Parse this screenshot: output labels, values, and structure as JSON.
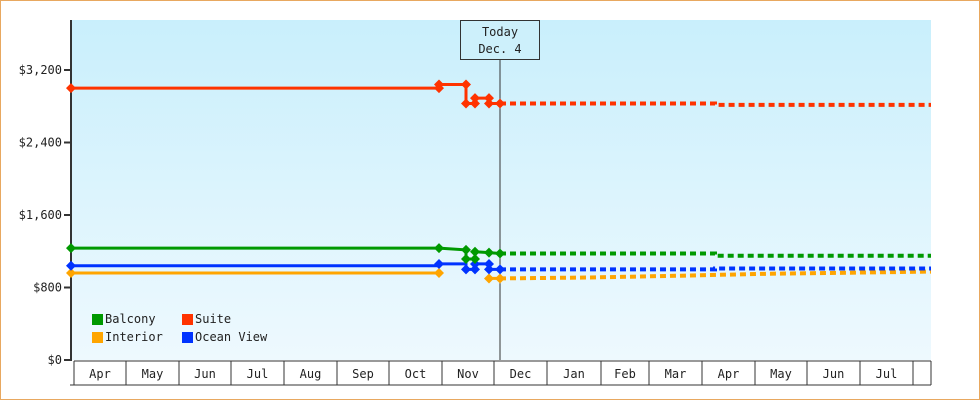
{
  "chart_data": {
    "type": "line",
    "title": "",
    "xlabel": "",
    "ylabel": "",
    "ylim": [
      0,
      3800
    ],
    "y_ticks": [
      "$0",
      "$800",
      "$1,600",
      "$2,400",
      "$3,200"
    ],
    "y_tick_values": [
      0,
      800,
      1600,
      2400,
      3200
    ],
    "x_ticks": [
      "Apr",
      "May",
      "Jun",
      "Jul",
      "Aug",
      "Sep",
      "Oct",
      "Nov",
      "Dec",
      "Jan",
      "Feb",
      "Mar",
      "Apr",
      "May",
      "Jun",
      "Jul"
    ],
    "today_marker": {
      "line1": "Today",
      "line2": "Dec. 4"
    },
    "legend_position": "bottom-left inside plot",
    "grid": false,
    "series": [
      {
        "name": "Suite",
        "color": "#ff3300",
        "history": [
          [
            "Apr",
            3000
          ],
          [
            "Oct (late)",
            3000
          ],
          [
            "Oct (late)",
            3040
          ],
          [
            "Nov (mid)",
            3040
          ],
          [
            "Nov (mid)",
            2830
          ],
          [
            "Nov (late)",
            2830
          ],
          [
            "Nov (late)",
            2890
          ],
          [
            "Dec (early)",
            2890
          ],
          [
            "Dec (early)",
            2830
          ],
          [
            "Dec 4",
            2830
          ]
        ],
        "forecast": [
          [
            "Dec 4",
            2830
          ],
          [
            "Apr",
            2830
          ],
          [
            "Jul",
            2815
          ]
        ]
      },
      {
        "name": "Balcony",
        "color": "#009900",
        "history": [
          [
            "Apr",
            1235
          ],
          [
            "Oct (late)",
            1235
          ],
          [
            "Nov (mid)",
            1215
          ],
          [
            "Nov (mid)",
            1115
          ],
          [
            "Nov (late)",
            1195
          ],
          [
            "Dec (early)",
            1185
          ],
          [
            "Dec 4",
            1175
          ]
        ],
        "forecast": [
          [
            "Dec 4",
            1175
          ],
          [
            "Apr",
            1175
          ],
          [
            "Jul",
            1150
          ]
        ]
      },
      {
        "name": "Ocean View",
        "color": "#0033ff",
        "history": [
          [
            "Apr",
            1040
          ],
          [
            "Oct (late)",
            1040
          ],
          [
            "Oct (late)",
            1060
          ],
          [
            "Nov (mid)",
            1060
          ],
          [
            "Nov (mid)",
            1000
          ],
          [
            "Nov (late)",
            1000
          ],
          [
            "Nov (late)",
            1060
          ],
          [
            "Dec (early)",
            1060
          ],
          [
            "Dec (early)",
            1000
          ],
          [
            "Dec 4",
            1000
          ]
        ],
        "forecast": [
          [
            "Dec 4",
            1000
          ],
          [
            "Apr",
            1000
          ],
          [
            "Jul",
            1010
          ]
        ]
      },
      {
        "name": "Interior",
        "color": "#ffa500",
        "history": [
          [
            "Apr",
            960
          ],
          [
            "Oct (late)",
            960
          ],
          [
            "Dec (early)",
            900
          ],
          [
            "Dec 4",
            900
          ]
        ],
        "forecast": [
          [
            "Dec 4",
            900
          ],
          [
            "Mar",
            930
          ],
          [
            "Jul",
            975
          ]
        ]
      }
    ]
  },
  "legend": [
    {
      "label": "Balcony",
      "color": "#009900"
    },
    {
      "label": "Suite",
      "color": "#ff3300"
    },
    {
      "label": "Interior",
      "color": "#ffa500"
    },
    {
      "label": "Ocean View",
      "color": "#0033ff"
    }
  ]
}
